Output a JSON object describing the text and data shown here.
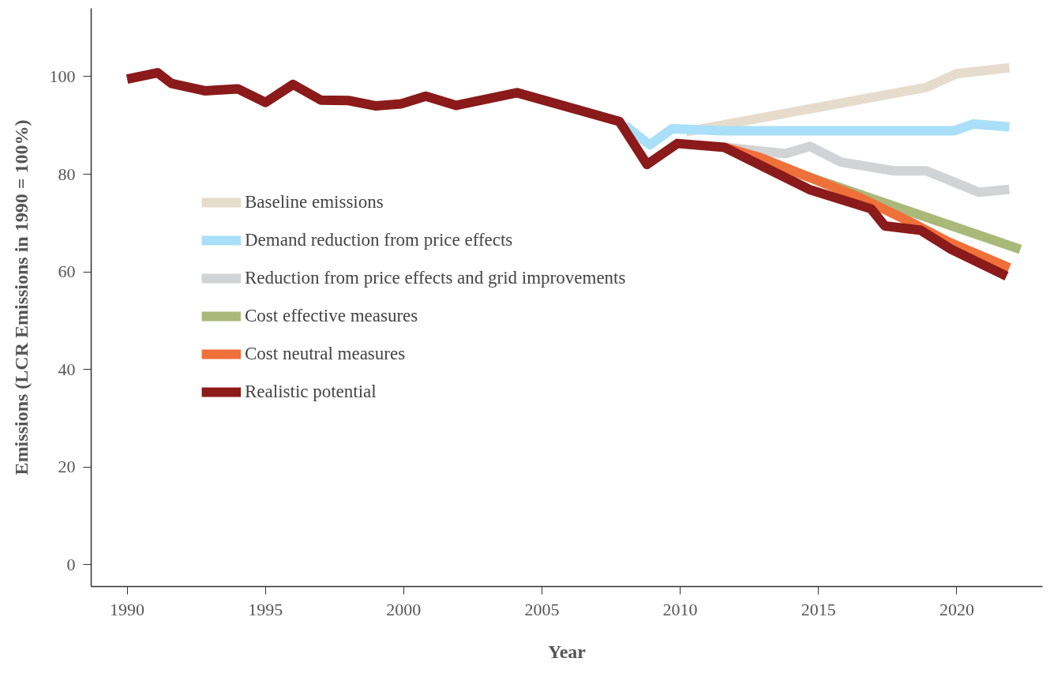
{
  "chart_data": {
    "type": "line",
    "xlabel": "Year",
    "ylabel": "Emissions (LCR Emissions in 1990 = 100%)",
    "xlim": [
      1988.7,
      2023.1
    ],
    "ylim": [
      -4.5,
      114
    ],
    "xticks": [
      1990,
      1995,
      2000,
      2005,
      2010,
      2015,
      2020
    ],
    "yticks": [
      0,
      20,
      40,
      60,
      80,
      100
    ],
    "grid": false,
    "legend": "left",
    "line_style": "solid",
    "marker": "none",
    "series": [
      {
        "name": "Baseline emissions",
        "color": "#e6dccd",
        "x": [
          2010.2,
          2018.9,
          2020,
          2021.9
        ],
        "values": [
          88.7,
          97.8,
          100.6,
          101.8
        ]
      },
      {
        "name": "Demand reduction from price effects",
        "color": "#a9dff8",
        "x": [
          2008.0,
          2008.9,
          2009.7,
          2011.6,
          2019.9,
          2020.6,
          2021.9
        ],
        "values": [
          90,
          86,
          89.3,
          88.9,
          88.9,
          90.3,
          89.7
        ]
      },
      {
        "name": "Reduction from price effects and grid improvements",
        "color": "#d2d3d5",
        "x": [
          2011.6,
          2013.8,
          2014.7,
          2015.8,
          2017.7,
          2018.9,
          2020.8,
          2021.9
        ],
        "values": [
          85.5,
          84.2,
          85.7,
          82.5,
          80.7,
          80.7,
          76.3,
          76.9
        ]
      },
      {
        "name": "Cost effective measures",
        "color": "#aab97a",
        "x": [
          2011.6,
          2012.6,
          2022.3
        ],
        "values": [
          85.5,
          83.4,
          64.6
        ]
      },
      {
        "name": "Cost neutral measures",
        "color": "#f0703a",
        "x": [
          2011.6,
          2012.9,
          2016.5,
          2018.4,
          2019.7,
          2021.9
        ],
        "values": [
          85.5,
          83.4,
          75.2,
          70,
          66.1,
          60.8
        ]
      },
      {
        "name": "Realistic potential",
        "color": "#8b1a1a",
        "x": [
          1990,
          1991.1,
          1991.6,
          1992.8,
          1994,
          1995,
          1996,
          1997,
          1998,
          1999,
          1999.9,
          2000.8,
          2001.9,
          2004.1,
          2007.8,
          2008.8,
          2009.9,
          2011.6,
          2014.7,
          2016.9,
          2017.4,
          2018.7,
          2019.8,
          2021.8
        ],
        "values": [
          99.5,
          100.8,
          98.6,
          97.1,
          97.5,
          94.7,
          98.4,
          95.2,
          95.1,
          94,
          94.4,
          96,
          94.1,
          96.7,
          90.8,
          82,
          86.3,
          85.5,
          76.8,
          72.9,
          69.4,
          68.5,
          64.6,
          59.1
        ]
      }
    ]
  }
}
